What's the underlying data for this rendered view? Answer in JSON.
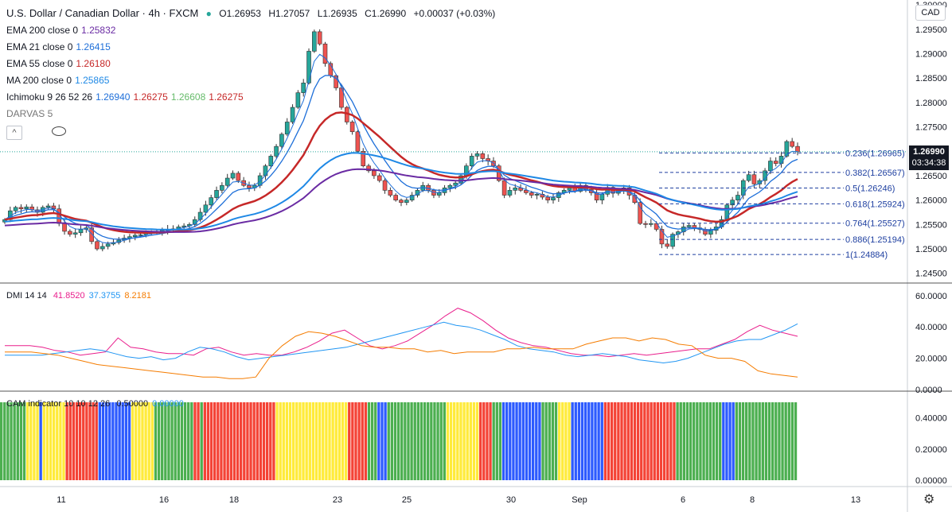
{
  "header": {
    "symbol": "U.S. Dollar / Canadian Dollar · 4h · FXCM",
    "open": "O1.26953",
    "high": "H1.27057",
    "low": "L1.26935",
    "close": "C1.26990",
    "change": "+0.00037 (+0.03%)"
  },
  "indicators": [
    {
      "label": "EMA 200 close 0",
      "values": [
        "1.25832"
      ],
      "colors": [
        "#6a2ba3"
      ]
    },
    {
      "label": "EMA 21 close 0",
      "values": [
        "1.26415"
      ],
      "colors": [
        "#1e6fd9"
      ]
    },
    {
      "label": "EMA 55 close 0",
      "values": [
        "1.26180"
      ],
      "colors": [
        "#c62828"
      ]
    },
    {
      "label": "MA 200 close 0",
      "values": [
        "1.25865"
      ],
      "colors": [
        "#1e88e5"
      ]
    },
    {
      "label": "Ichimoku 9 26 52 26",
      "values": [
        "1.26940",
        "1.26275",
        "1.26608",
        "1.26275"
      ],
      "colors": [
        "#1e6fd9",
        "#c62828",
        "#66bb6a",
        "#c62828"
      ]
    }
  ],
  "darvas": {
    "label": "DARVAS 5",
    "collapse_glyph": "^"
  },
  "dmi": {
    "label": "DMI 14 14",
    "values": [
      "41.8520",
      "37.3755",
      "8.2181"
    ],
    "colors": [
      "#e91e8c",
      "#2196f3",
      "#f57c00"
    ]
  },
  "cam": {
    "label": "CAM indicator 10 10 12 26",
    "values": [
      "0.50000",
      "0.00000"
    ],
    "colors": [
      "#131722",
      "#2196f3"
    ]
  },
  "currency_button": "CAD",
  "last_price": {
    "price": "1.26990",
    "countdown": "03:34:38"
  },
  "price_axis": [
    "1.30000",
    "1.29500",
    "1.29000",
    "1.28500",
    "1.28000",
    "1.27500",
    "1.27000",
    "1.26500",
    "1.26000",
    "1.25500",
    "1.25000",
    "1.24500"
  ],
  "dmi_axis": [
    "60.0000",
    "40.0000",
    "20.0000",
    "0.0000"
  ],
  "cam_axis": [
    "0.40000",
    "0.20000",
    "0.00000"
  ],
  "time_axis": [
    "11",
    "16",
    "18",
    "23",
    "25",
    "30",
    "Sep",
    "6",
    "8",
    "13"
  ],
  "chart_data": [
    {
      "type": "candlestick",
      "title": "U.S. Dollar / Canadian Dollar · 4h · FXCM",
      "ylim": [
        1.243,
        1.301
      ],
      "fibonacci": [
        {
          "label": "0.236(1.26965)",
          "level": 1.26965
        },
        {
          "label": "0.382(1.26567)",
          "level": 1.26567
        },
        {
          "label": "0.5(1.26246)",
          "level": 1.26246
        },
        {
          "label": "0.618(1.25924)",
          "level": 1.25924
        },
        {
          "label": "0.764(1.25527)",
          "level": 1.25527
        },
        {
          "label": "0.886(1.25194)",
          "level": 1.25194
        },
        {
          "label": "1(1.24884)",
          "level": 1.24884
        }
      ],
      "series": [
        {
          "name": "Close",
          "values": [
            1.256,
            1.2578,
            1.2585,
            1.2582,
            1.2586,
            1.258,
            1.2575,
            1.2585,
            1.2588,
            1.2582,
            1.2552,
            1.2536,
            1.253,
            1.2533,
            1.254,
            1.2543,
            1.2515,
            1.25,
            1.2505,
            1.251,
            1.2513,
            1.2518,
            1.2522,
            1.2525,
            1.2528,
            1.2529,
            1.2532,
            1.2535,
            1.2536,
            1.2538,
            1.254,
            1.2541,
            1.2545,
            1.2547,
            1.255,
            1.256,
            1.2575,
            1.259,
            1.2605,
            1.262,
            1.263,
            1.2645,
            1.2655,
            1.264,
            1.263,
            1.2625,
            1.263,
            1.265,
            1.267,
            1.269,
            1.271,
            1.2735,
            1.276,
            1.279,
            1.282,
            1.284,
            1.2905,
            1.2945,
            1.292,
            1.288,
            1.2855,
            1.283,
            1.279,
            1.276,
            1.274,
            1.27,
            1.267,
            1.266,
            1.265,
            1.264,
            1.262,
            1.261,
            1.26,
            1.2595,
            1.26,
            1.261,
            1.262,
            1.263,
            1.262,
            1.261,
            1.2615,
            1.2625,
            1.263,
            1.2635,
            1.265,
            1.267,
            1.269,
            1.2695,
            1.2685,
            1.268,
            1.267,
            1.264,
            1.261,
            1.262,
            1.2625,
            1.262,
            1.2615,
            1.261,
            1.2612,
            1.2606,
            1.26,
            1.2605,
            1.2615,
            1.262,
            1.2625,
            1.2618,
            1.263,
            1.2622,
            1.2615,
            1.26,
            1.2612,
            1.2626,
            1.2614,
            1.262,
            1.2625,
            1.261,
            1.2595,
            1.2552,
            1.255,
            1.2552,
            1.254,
            1.251,
            1.2505,
            1.253,
            1.2535,
            1.2545,
            1.2548,
            1.2543,
            1.254,
            1.253,
            1.2538,
            1.2545,
            1.256,
            1.259,
            1.26,
            1.261,
            1.264,
            1.2652,
            1.2633,
            1.264,
            1.266,
            1.268,
            1.2675,
            1.269,
            1.272,
            1.271,
            1.2699
          ]
        }
      ]
    },
    {
      "type": "line",
      "title": "DMI 14 14",
      "ylim": [
        0,
        66
      ],
      "series": [
        {
          "name": "DI+",
          "values": [
            28,
            28,
            28,
            27,
            25,
            24,
            22,
            23,
            24,
            33,
            27,
            26,
            24,
            23,
            23,
            22,
            26,
            27,
            24,
            22,
            23,
            22,
            22,
            24,
            27,
            31,
            36,
            38,
            33,
            28,
            26,
            28,
            31,
            36,
            41,
            47,
            52,
            49,
            44,
            38,
            33,
            30,
            28,
            27,
            25,
            23,
            22,
            22,
            21,
            22,
            23,
            22,
            23,
            24,
            25,
            26,
            26,
            29,
            32,
            37,
            41,
            38,
            36,
            34
          ]
        },
        {
          "name": "DI-",
          "values": [
            22,
            22,
            22,
            22,
            23,
            24,
            25,
            26,
            25,
            23,
            21,
            20,
            21,
            19,
            20,
            24,
            27,
            26,
            24,
            21,
            19,
            20,
            21,
            22,
            23,
            24,
            25,
            26,
            27,
            29,
            31,
            33,
            35,
            37,
            39,
            41,
            43,
            41,
            40,
            38,
            35,
            32,
            28,
            26,
            25,
            24,
            22,
            21,
            22,
            23,
            22,
            21,
            19,
            18,
            17,
            18,
            20,
            23,
            26,
            29,
            31,
            32,
            32,
            35,
            38,
            42
          ]
        },
        {
          "name": "ADX",
          "values": [
            24,
            24,
            24,
            23,
            22,
            20,
            18,
            16,
            15,
            14,
            13,
            12,
            11,
            10,
            9,
            8,
            8,
            7,
            7,
            8,
            20,
            28,
            34,
            37,
            36,
            34,
            31,
            28,
            27,
            27,
            26,
            26,
            24,
            25,
            23,
            24,
            24,
            24,
            26,
            26,
            27,
            26,
            26,
            26,
            29,
            31,
            33,
            33,
            31,
            33,
            32,
            29,
            28,
            22,
            20,
            20,
            18,
            12,
            10,
            9,
            8
          ]
        }
      ]
    },
    {
      "type": "bar",
      "title": "CAM indicator 10 10 12 26",
      "ylim": [
        0,
        0.5
      ],
      "bar_value": 0.5,
      "color_key": {
        "G": "#4caf50",
        "Y": "#ffeb3b",
        "R": "#f44336",
        "B": "#2d5bff"
      },
      "sequence": "GGGGGGGGYYYYBYYYYYYYRRRRRRRRRRBBBBBBBBBBYYYYYYYGGGGGGGGGGGGRRGRRRRRRRRRRRRRRRRRRRRRRYYYYYYYYYYYYYYYYYYYYYYRRRRRRGGGBBBGGGGGGGGGGGGGGGGGGYYYYYYYYYYRRRRGGGBBBBBBBBBBBBGGGGGYYYYBBBBBBBBBBRRRRRRRRRRRRRRRRRRRRRRGGGGGGGGGGGGGGBBBBGGGGGGGGGGGGGGGGGGG"
    }
  ]
}
